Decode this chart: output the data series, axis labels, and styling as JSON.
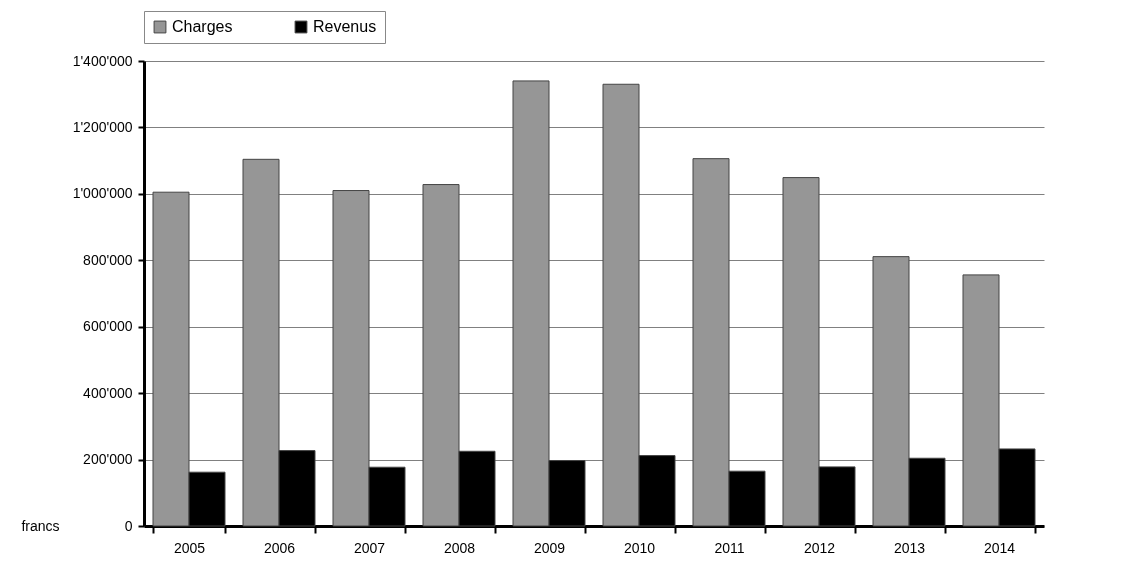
{
  "chart_data": {
    "type": "bar",
    "ylabel": "francs",
    "categories": [
      "2005",
      "2006",
      "2007",
      "2008",
      "2009",
      "2010",
      "2011",
      "2012",
      "2013",
      "2014"
    ],
    "series": [
      {
        "name": "Charges",
        "color": "#969696",
        "values": [
          1005000,
          1104000,
          1010000,
          1028000,
          1340000,
          1330000,
          1106000,
          1049000,
          811000,
          756000
        ]
      },
      {
        "name": "Revenus",
        "color": "#000000",
        "values": [
          162000,
          227000,
          177000,
          225000,
          197000,
          212000,
          165000,
          178000,
          204000,
          232000
        ]
      }
    ],
    "ylim": [
      0,
      1400000
    ],
    "yticks": [
      {
        "value": 0,
        "label": "0"
      },
      {
        "value": 200000,
        "label": "200'000"
      },
      {
        "value": 400000,
        "label": "400'000"
      },
      {
        "value": 600000,
        "label": "600'000"
      },
      {
        "value": 800000,
        "label": "800'000"
      },
      {
        "value": 1000000,
        "label": "1'000'000"
      },
      {
        "value": 1200000,
        "label": "1'200'000"
      },
      {
        "value": 1400000,
        "label": "1'400'000"
      }
    ],
    "grid": "y",
    "legend": "top"
  }
}
